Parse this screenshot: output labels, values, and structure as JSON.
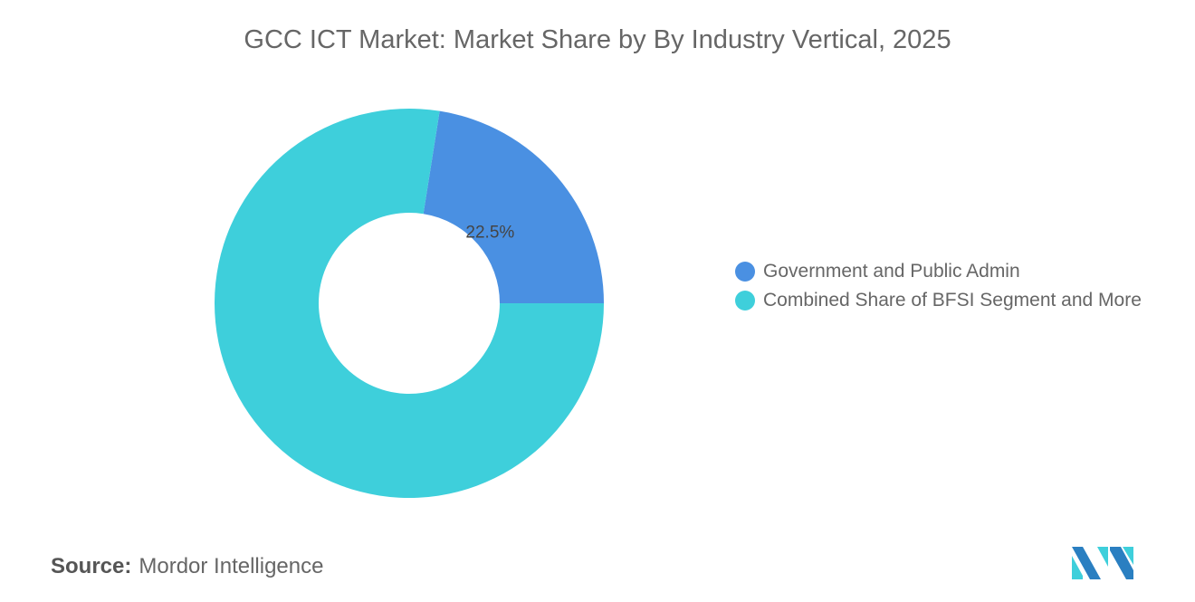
{
  "chart_data": {
    "type": "pie",
    "donut": true,
    "title": "GCC ICT Market: Market Share by By Industry Vertical, 2025",
    "categories": [
      "Government and Public Admin",
      "Combined Share of BFSI Segment and More"
    ],
    "values": [
      22.5,
      77.5
    ],
    "data_labels": [
      "22.5%",
      ""
    ],
    "colors": [
      "#4a90e2",
      "#3ecfdb"
    ],
    "legend_position": "right"
  },
  "source": {
    "label": "Source:",
    "value": "Mordor Intelligence"
  },
  "logo": {
    "colors": [
      "#2a7fc1",
      "#3ecfdb"
    ]
  }
}
